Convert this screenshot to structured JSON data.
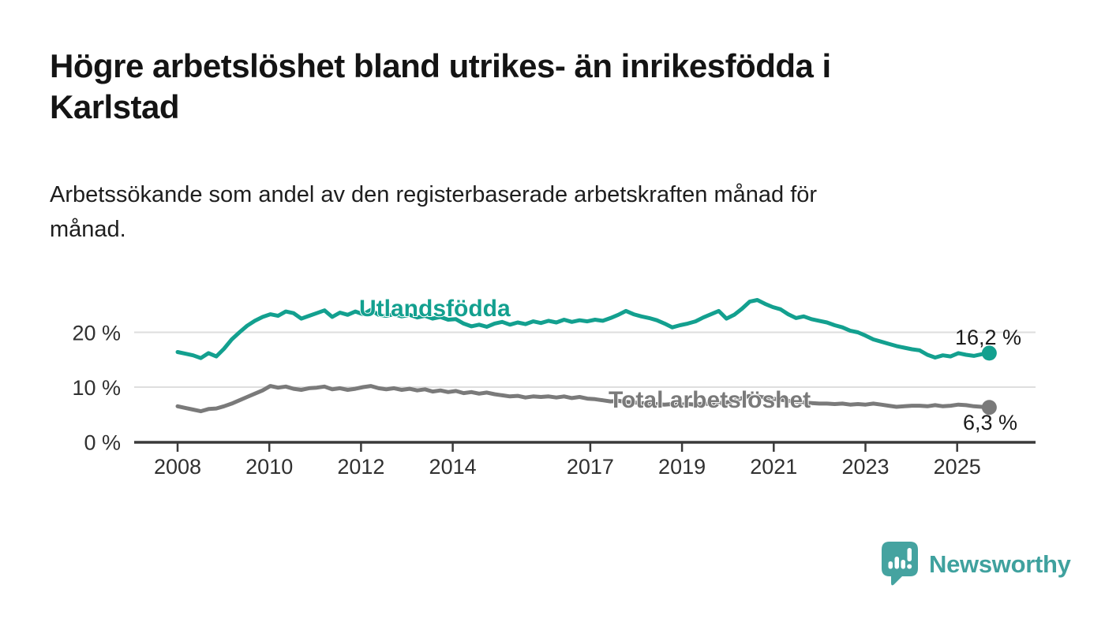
{
  "header": {
    "title_lines": [
      "Högre arbetslöshet bland utrikes- än inrikesfödda i",
      "Karlstad"
    ],
    "subtitle_lines": [
      "Arbetssökande som andel av den registerbaserade arbetskraften månad för",
      "månad."
    ]
  },
  "chart_data": {
    "type": "line",
    "title": "Högre arbetslöshet bland utrikes- än inrikesfödda i Karlstad",
    "subtitle": "Arbetssökande som andel av den registerbaserade arbetskraften månad för månad.",
    "x_unit": "year",
    "x_range": [
      2008.0,
      2025.7
    ],
    "x_ticks": [
      2008,
      2010,
      2012,
      2014,
      2017,
      2019,
      2021,
      2023,
      2025
    ],
    "y_ticks": [
      0,
      10,
      20
    ],
    "y_tick_labels": [
      "0 %",
      "10 %",
      "20 %"
    ],
    "ylim": [
      0,
      27.5
    ],
    "grid": "horizontal",
    "colors": {
      "grid": "#dedede",
      "axis": "#3a3a3a",
      "tick_text": "#303030",
      "value_label": "#1a1a1a"
    },
    "series": [
      {
        "name": "Utlandsfödda",
        "color": "#13a08f",
        "end_label": "16,2 %",
        "end_value": 16.2,
        "values": [
          16.4,
          16.1,
          15.8,
          15.3,
          16.2,
          15.6,
          17.0,
          18.7,
          20.0,
          21.2,
          22.1,
          22.8,
          23.3,
          23.0,
          23.8,
          23.5,
          22.5,
          23.0,
          23.5,
          24.0,
          22.8,
          23.6,
          23.2,
          23.8,
          23.3,
          24.1,
          23.2,
          23.0,
          23.3,
          22.9,
          23.2,
          22.7,
          23.0,
          22.5,
          22.8,
          22.3,
          22.4,
          21.6,
          21.1,
          21.4,
          21.0,
          21.6,
          21.9,
          21.4,
          21.8,
          21.5,
          22.0,
          21.7,
          22.1,
          21.8,
          22.3,
          21.9,
          22.2,
          22.0,
          22.3,
          22.1,
          22.6,
          23.2,
          23.9,
          23.3,
          22.9,
          22.6,
          22.2,
          21.6,
          20.9,
          21.3,
          21.6,
          22.0,
          22.7,
          23.3,
          23.9,
          22.5,
          23.2,
          24.3,
          25.6,
          25.9,
          25.2,
          24.6,
          24.2,
          23.3,
          22.6,
          22.9,
          22.4,
          22.1,
          21.8,
          21.3,
          20.9,
          20.3,
          20.0,
          19.4,
          18.7,
          18.3,
          17.9,
          17.5,
          17.2,
          16.9,
          16.7,
          15.9,
          15.4,
          15.8,
          15.6,
          16.2,
          15.9,
          15.7,
          16.0,
          16.2
        ]
      },
      {
        "name": "Total arbetslöshet",
        "color": "#7a7a7a",
        "end_label": "6,3 %",
        "end_value": 6.3,
        "values": [
          6.5,
          6.2,
          5.9,
          5.6,
          6.0,
          6.1,
          6.5,
          7.0,
          7.6,
          8.2,
          8.8,
          9.4,
          10.2,
          9.9,
          10.1,
          9.7,
          9.5,
          9.8,
          9.9,
          10.1,
          9.6,
          9.8,
          9.5,
          9.7,
          10.0,
          10.2,
          9.8,
          9.6,
          9.8,
          9.5,
          9.7,
          9.4,
          9.6,
          9.2,
          9.4,
          9.1,
          9.3,
          8.9,
          9.1,
          8.8,
          9.0,
          8.7,
          8.5,
          8.3,
          8.4,
          8.1,
          8.3,
          8.2,
          8.3,
          8.1,
          8.3,
          8.0,
          8.2,
          7.9,
          7.8,
          7.6,
          7.4,
          7.5,
          7.3,
          7.2,
          7.1,
          7.0,
          6.9,
          6.8,
          6.9,
          6.8,
          6.9,
          6.8,
          7.0,
          6.9,
          7.1,
          7.2,
          7.5,
          8.0,
          8.4,
          8.3,
          8.1,
          7.9,
          7.7,
          7.5,
          7.4,
          7.2,
          7.1,
          7.0,
          7.0,
          6.9,
          7.0,
          6.8,
          6.9,
          6.8,
          7.0,
          6.8,
          6.6,
          6.4,
          6.5,
          6.6,
          6.6,
          6.5,
          6.7,
          6.5,
          6.6,
          6.8,
          6.7,
          6.5,
          6.4,
          6.3
        ]
      }
    ]
  },
  "logo": {
    "text": "Newsworthy",
    "icon": "speech-bubble-bar-chart-icon",
    "color": "#45a3a0"
  }
}
